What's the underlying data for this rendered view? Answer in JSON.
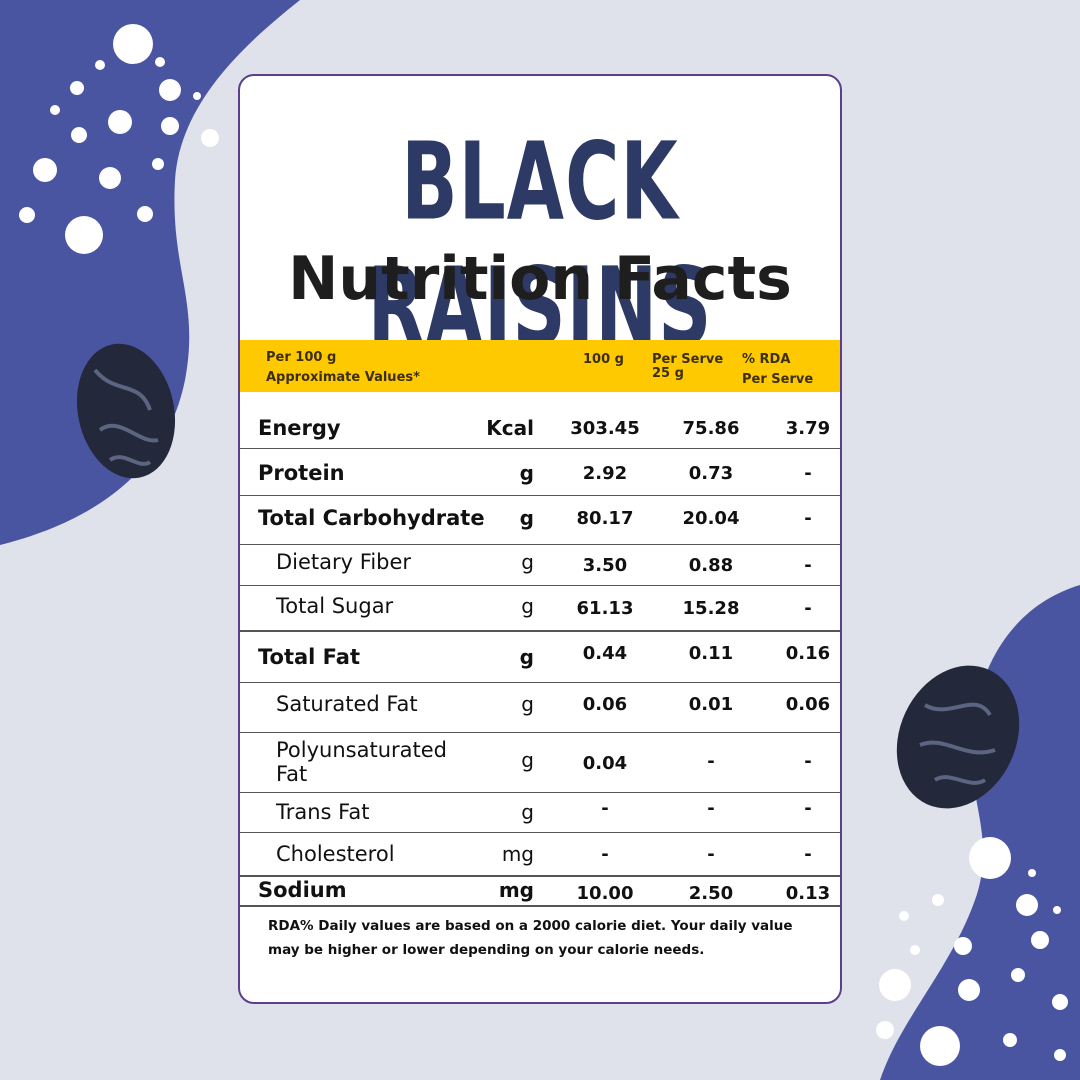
{
  "title": "BLACK RAISINS",
  "subtitle": "Nutrition Facts",
  "header": {
    "col0_line1": "Per 100 g",
    "col0_line2": "Approximate Values*",
    "col1": "100 g",
    "col2_line1": "Per Serve",
    "col2_line2": "25 g",
    "col3_line1": "% RDA",
    "col3_line2": "Per Serve"
  },
  "rows": [
    {
      "label": "Energy",
      "unit": "Kcal",
      "v100": "303.45",
      "serve": "75.86",
      "rda": "3.79"
    },
    {
      "label": "Protein",
      "unit": "g",
      "v100": "2.92",
      "serve": "0.73",
      "rda": "-"
    },
    {
      "label": "Total Carbohydrate",
      "unit": "g",
      "v100": "80.17",
      "serve": "20.04",
      "rda": "-"
    },
    {
      "label": "Dietary Fiber",
      "unit": "g",
      "v100": "3.50",
      "serve": "0.88",
      "rda": "-"
    },
    {
      "label": "Total Sugar",
      "unit": "g",
      "v100": "61.13",
      "serve": "15.28",
      "rda": "-"
    },
    {
      "label": "Total Fat",
      "unit": "g",
      "v100": "0.44",
      "serve": "0.11",
      "rda": "0.16"
    },
    {
      "label": "Saturated Fat",
      "unit": "g",
      "v100": "0.06",
      "serve": "0.01",
      "rda": "0.06"
    },
    {
      "label": "Polyunsaturated Fat",
      "label_line1": "Polyunsaturated",
      "label_line2": "Fat",
      "unit": "g",
      "v100": "0.04",
      "serve": "-",
      "rda": "-"
    },
    {
      "label": "Trans Fat",
      "unit": "g",
      "v100": "-",
      "serve": "-",
      "rda": "-"
    },
    {
      "label": "Cholesterol",
      "unit": "mg",
      "v100": "-",
      "serve": "-",
      "rda": "-"
    },
    {
      "label": "Sodium",
      "unit": "mg",
      "v100": "10.00",
      "serve": "2.50",
      "rda": "0.13"
    }
  ],
  "footnote": "RDA% Daily values are based on a 2000 calorie diet. Your daily value may be higher or lower depending on your calorie needs.",
  "colors": {
    "blob": "#4a55a2",
    "background": "#dfe2ea",
    "title": "#2e3a66",
    "header_band": "#ffc900",
    "card_border": "#5b3f8a"
  }
}
